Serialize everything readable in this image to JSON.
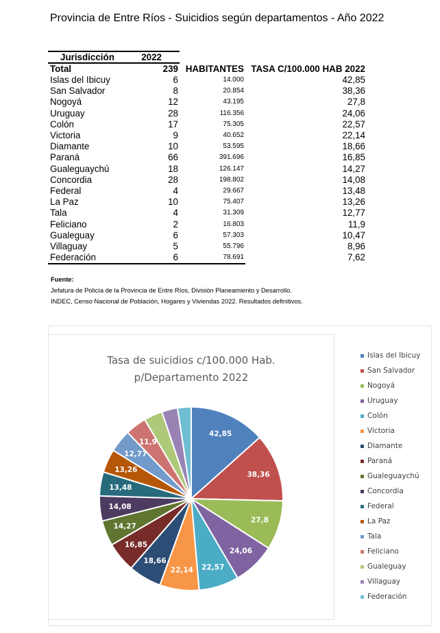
{
  "title": "Provincia de Entre Ríos - Suicidios según departamentos - Año 2022",
  "table": {
    "headers": {
      "jurisdiccion": "Jurisdicción",
      "year": "2022",
      "habitantes": "HABITANTES",
      "tasa": "TASA C/100.000 HAB 2022"
    },
    "total": {
      "name": "Total",
      "value": "239"
    },
    "rows": [
      {
        "name": "Islas del Ibicuy",
        "value": "6",
        "habitantes": "14.000",
        "tasa": "42,85"
      },
      {
        "name": "San Salvador",
        "value": "8",
        "habitantes": "20.854",
        "tasa": "38,36"
      },
      {
        "name": "Nogoyá",
        "value": "12",
        "habitantes": "43.195",
        "tasa": "27,8"
      },
      {
        "name": "Uruguay",
        "value": "28",
        "habitantes": "116.356",
        "tasa": "24,06"
      },
      {
        "name": "Colón",
        "value": "17",
        "habitantes": "75.305",
        "tasa": "22,57"
      },
      {
        "name": "Victoria",
        "value": "9",
        "habitantes": "40.652",
        "tasa": "22,14"
      },
      {
        "name": "Diamante",
        "value": "10",
        "habitantes": "53.595",
        "tasa": "18,66"
      },
      {
        "name": "Paraná",
        "value": "66",
        "habitantes": "391.696",
        "tasa": "16,85"
      },
      {
        "name": "Gualeguaychú",
        "value": "18",
        "habitantes": "126.147",
        "tasa": "14,27"
      },
      {
        "name": "Concordia",
        "value": "28",
        "habitantes": "198.802",
        "tasa": "14,08"
      },
      {
        "name": "Federal",
        "value": "4",
        "habitantes": "29.667",
        "tasa": "13,48"
      },
      {
        "name": "La Paz",
        "value": "10",
        "habitantes": "75.407",
        "tasa": "13,26"
      },
      {
        "name": "Tala",
        "value": "4",
        "habitantes": "31.309",
        "tasa": "12,77"
      },
      {
        "name": "Feliciano",
        "value": "2",
        "habitantes": "16.803",
        "tasa": "11,9"
      },
      {
        "name": "Gualeguay",
        "value": "6",
        "habitantes": "57.303",
        "tasa": "10,47"
      },
      {
        "name": "Villaguay",
        "value": "5",
        "habitantes": "55.796",
        "tasa": "8,96"
      },
      {
        "name": "Federación",
        "value": "6",
        "habitantes": "78.691",
        "tasa": "7,62"
      }
    ]
  },
  "source": {
    "label": "Fuente",
    "lines": [
      "Jefatura de Policía de la Provincia de Entre Ríos, División Planeamiento y Desarrollo.",
      "INDEC, Censo Nacional de Población, Hogares y Viviendas 2022. Resultados definitivos."
    ]
  },
  "chart_data": {
    "type": "pie",
    "title": [
      "Tasa de suicidios c/100.000 Hab.",
      "p/Departamento 2022"
    ],
    "legend_position": "right",
    "categories": [
      "Islas del Ibicuy",
      "San Salvador",
      "Nogoyá",
      "Uruguay",
      "Colón",
      "Victoria",
      "Diamante",
      "Paraná",
      "Gualeguaychú",
      "Concordia",
      "Federal",
      "La Paz",
      "Tala",
      "Feliciano",
      "Gualeguay",
      "Villaguay",
      "Federación"
    ],
    "values": [
      42.85,
      38.36,
      27.8,
      24.06,
      22.57,
      22.14,
      18.66,
      16.85,
      14.27,
      14.08,
      13.48,
      13.26,
      12.77,
      11.9,
      10.47,
      8.96,
      7.62
    ],
    "data_labels": [
      "42,85",
      "38,36",
      "27,8",
      "24,06",
      "22,57",
      "22,14",
      "18,66",
      "16,85",
      "14,27",
      "14,08",
      "13,48",
      "13,26",
      "12,77",
      "11,9",
      "",
      "",
      ""
    ],
    "colors": [
      "#4F81BD",
      "#C0504D",
      "#9BBB59",
      "#8064A2",
      "#4BACC6",
      "#F79646",
      "#2C4D75",
      "#772C2A",
      "#5F7530",
      "#4D3B62",
      "#276A7C",
      "#B65708",
      "#729ACA",
      "#CD7371",
      "#AFC97A",
      "#9983B5",
      "#6FBDD1"
    ]
  }
}
